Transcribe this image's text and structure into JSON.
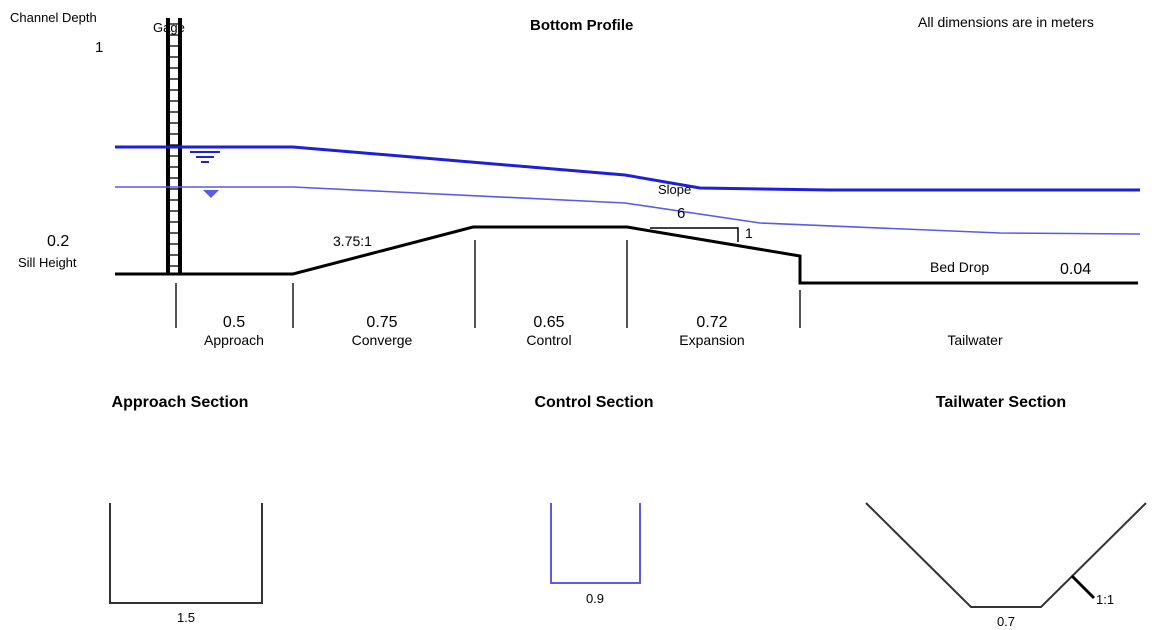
{
  "header": {
    "channel_depth_label": "Channel Depth",
    "channel_depth_value": "1",
    "gage_label": "Gage",
    "title": "Bottom Profile",
    "units_note": "All dimensions are in meters"
  },
  "profile": {
    "sill_height_value": "0.2",
    "sill_height_label": "Sill Height",
    "converge_ratio": "3.75:1",
    "slope_label": "Slope",
    "slope_run": "6",
    "slope_rise": "1",
    "bed_drop_label": "Bed Drop",
    "bed_drop_value": "0.04",
    "segments": [
      {
        "value": "0.5",
        "name": "Approach"
      },
      {
        "value": "0.75",
        "name": "Converge"
      },
      {
        "value": "0.65",
        "name": "Control"
      },
      {
        "value": "0.72",
        "name": "Expansion"
      },
      {
        "value": "",
        "name": "Tailwater"
      }
    ]
  },
  "sections": {
    "approach": {
      "title": "Approach Section",
      "width": "1.5"
    },
    "control": {
      "title": "Control Section",
      "width": "0.9"
    },
    "tailwater": {
      "title": "Tailwater Section",
      "width": "0.7",
      "side_slope": "1:1"
    }
  },
  "colors": {
    "water_upper": "#1f1fd6",
    "water_lower": "#5a5ae8",
    "ground": "#000000",
    "divider": "#555555",
    "control_section": "#5a5ae8"
  }
}
